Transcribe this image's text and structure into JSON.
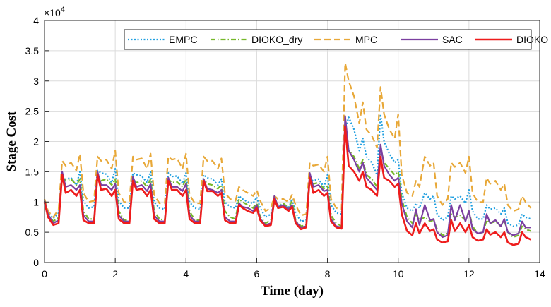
{
  "chart_data": {
    "type": "line",
    "title": "",
    "xlabel": "Time (day)",
    "ylabel": "Stage Cost",
    "y_multiplier_label": "×10",
    "y_multiplier_exp": "4",
    "xlim": [
      0,
      14
    ],
    "ylim": [
      0,
      40000
    ],
    "x_ticks": [
      0,
      2,
      4,
      6,
      8,
      10,
      12,
      14
    ],
    "y_ticks": [
      0,
      5000,
      10000,
      15000,
      20000,
      25000,
      30000,
      35000,
      40000
    ],
    "x_tick_labels": [
      "0",
      "2",
      "4",
      "6",
      "8",
      "10",
      "12",
      "14"
    ],
    "y_tick_labels": [
      "0",
      "0.5",
      "1",
      "1.5",
      "2",
      "2.5",
      "3",
      "3.5",
      "4"
    ],
    "grid": true,
    "legend_position": "top-right",
    "x": [
      0,
      0.1,
      0.25,
      0.4,
      0.5,
      0.6,
      0.75,
      0.9,
      1.0,
      1.1,
      1.25,
      1.4,
      1.5,
      1.6,
      1.75,
      1.9,
      2.0,
      2.1,
      2.25,
      2.4,
      2.5,
      2.6,
      2.75,
      2.9,
      3.0,
      3.1,
      3.25,
      3.4,
      3.5,
      3.6,
      3.75,
      3.9,
      4.0,
      4.1,
      4.25,
      4.4,
      4.5,
      4.6,
      4.75,
      4.9,
      5.0,
      5.1,
      5.25,
      5.4,
      5.5,
      5.6,
      5.75,
      5.9,
      6.0,
      6.1,
      6.25,
      6.4,
      6.5,
      6.6,
      6.75,
      6.9,
      7.0,
      7.1,
      7.25,
      7.4,
      7.5,
      7.6,
      7.75,
      7.9,
      8.0,
      8.1,
      8.25,
      8.4,
      8.5,
      8.6,
      8.75,
      8.9,
      9.0,
      9.1,
      9.25,
      9.4,
      9.5,
      9.6,
      9.75,
      9.9,
      10.0,
      10.1,
      10.25,
      10.4,
      10.5,
      10.6,
      10.75,
      10.9,
      11.0,
      11.1,
      11.25,
      11.4,
      11.5,
      11.6,
      11.75,
      11.9,
      12.0,
      12.1,
      12.25,
      12.4,
      12.5,
      12.6,
      12.75,
      12.9,
      13.0,
      13.1,
      13.25,
      13.4,
      13.5,
      13.6,
      13.75
    ],
    "series": [
      {
        "name": "EMPC",
        "color": "#1f9fe0",
        "dash": "2,2.5",
        "width": 2.2,
        "values": [
          10000,
          8200,
          7300,
          8200,
          14200,
          13800,
          14000,
          12800,
          15000,
          10200,
          9000,
          9200,
          15200,
          14800,
          14600,
          13200,
          15500,
          10200,
          9000,
          9000,
          14800,
          14500,
          14300,
          13200,
          15000,
          10000,
          9000,
          8800,
          14800,
          14200,
          14300,
          13000,
          14800,
          10000,
          9000,
          8800,
          14500,
          14000,
          13800,
          12800,
          13800,
          10000,
          9200,
          9000,
          11000,
          10500,
          10000,
          9800,
          10800,
          9000,
          7500,
          8000,
          10000,
          9500,
          9500,
          9000,
          10500,
          8200,
          6800,
          7000,
          13800,
          13500,
          13800,
          12500,
          14500,
          9500,
          8200,
          8000,
          22000,
          24000,
          22000,
          18500,
          20500,
          17500,
          16500,
          14500,
          24500,
          20000,
          18000,
          16500,
          17000,
          11500,
          9000,
          8500,
          9800,
          9000,
          11500,
          10500,
          11000,
          8000,
          7000,
          7500,
          11000,
          10500,
          11000,
          9800,
          12000,
          8500,
          7200,
          7200,
          9500,
          8800,
          9000,
          8000,
          9000,
          6500,
          6000,
          6200,
          8000,
          7500,
          7200
        ]
      },
      {
        "name": "DIOKO_dry",
        "color": "#76b82a",
        "dash": "7,3,1.5,3",
        "width": 2.2,
        "values": [
          10200,
          8000,
          6800,
          7500,
          14200,
          13500,
          13800,
          12800,
          13800,
          8500,
          7200,
          7200,
          14500,
          13500,
          13800,
          12800,
          13800,
          8500,
          7000,
          7000,
          13800,
          13200,
          13500,
          12500,
          13800,
          8500,
          7200,
          7000,
          13800,
          13200,
          13300,
          12500,
          13800,
          8500,
          7000,
          7000,
          13800,
          13000,
          12800,
          12200,
          12800,
          8500,
          7500,
          7200,
          10500,
          10000,
          9500,
          9000,
          10000,
          7500,
          6500,
          7000,
          10500,
          9500,
          9800,
          9000,
          10200,
          7000,
          6000,
          6200,
          14000,
          13000,
          13200,
          12200,
          12800,
          7800,
          6500,
          6000,
          21500,
          18500,
          17500,
          15500,
          17000,
          14500,
          13800,
          12500,
          19000,
          16500,
          15500,
          14500,
          15000,
          10500,
          7500,
          6500,
          8000,
          7000,
          7500,
          6800,
          7000,
          5500,
          4500,
          4800,
          8000,
          7500,
          7800,
          7000,
          8500,
          6000,
          4800,
          5000,
          7000,
          6500,
          6800,
          6000,
          7000,
          5000,
          4200,
          4500,
          6000,
          5500,
          5200
        ]
      },
      {
        "name": "MPC",
        "color": "#e8a838",
        "dash": "9,5",
        "width": 2.2,
        "values": [
          10500,
          8500,
          7500,
          8800,
          16800,
          16000,
          16500,
          15200,
          18000,
          11500,
          10000,
          10200,
          17500,
          16800,
          17000,
          15500,
          18500,
          11500,
          10000,
          10000,
          17500,
          17000,
          17200,
          15500,
          18000,
          11200,
          9800,
          9800,
          17500,
          17000,
          17200,
          15500,
          18000,
          11200,
          9800,
          9800,
          17500,
          16800,
          16800,
          15500,
          17200,
          11500,
          10500,
          10200,
          12500,
          12000,
          11500,
          11000,
          12000,
          10200,
          8500,
          9000,
          11000,
          10500,
          10500,
          10000,
          11200,
          9500,
          7800,
          8000,
          16500,
          16000,
          16200,
          15000,
          17500,
          10500,
          9000,
          8800,
          33000,
          30000,
          27500,
          23000,
          26500,
          22000,
          21000,
          19000,
          29000,
          24500,
          22000,
          20500,
          24500,
          14500,
          11500,
          11000,
          13500,
          12500,
          17500,
          16000,
          16500,
          11000,
          9500,
          10500,
          16500,
          15800,
          16500,
          14800,
          17500,
          11500,
          10000,
          10000,
          14000,
          13000,
          13500,
          12000,
          13000,
          9500,
          8500,
          8800,
          11000,
          10000,
          9000
        ]
      },
      {
        "name": "SAC",
        "color": "#7b3fa0",
        "dash": "",
        "width": 2.2,
        "values": [
          10200,
          8000,
          6500,
          7000,
          15000,
          12500,
          12800,
          12000,
          12800,
          7800,
          6800,
          6800,
          15000,
          12800,
          12800,
          12000,
          13000,
          7800,
          6800,
          6800,
          14200,
          12500,
          12800,
          11800,
          13000,
          7800,
          6800,
          6800,
          14000,
          12500,
          12500,
          11800,
          13000,
          7800,
          6800,
          6800,
          13800,
          12200,
          12000,
          11500,
          12000,
          7500,
          6800,
          6800,
          9800,
          9200,
          9000,
          8500,
          9500,
          7200,
          6200,
          6500,
          11000,
          9200,
          9500,
          8800,
          9500,
          6800,
          5800,
          6000,
          14800,
          12500,
          12800,
          11800,
          12000,
          7200,
          6000,
          5800,
          24200,
          18500,
          17000,
          15000,
          16500,
          14000,
          13000,
          12000,
          19500,
          16000,
          14500,
          13500,
          14000,
          9800,
          6800,
          5800,
          8800,
          6200,
          9500,
          7000,
          7200,
          5000,
          4200,
          4500,
          9500,
          7000,
          9500,
          6800,
          8500,
          5500,
          4800,
          5000,
          8000,
          6500,
          7000,
          6000,
          7200,
          5000,
          4500,
          4800,
          6800,
          5800,
          5800
        ]
      },
      {
        "name": "DIOKO",
        "color": "#ee1c1c",
        "dash": "",
        "width": 2.6,
        "values": [
          10000,
          7500,
          6200,
          6500,
          14500,
          11500,
          12000,
          11000,
          12000,
          7000,
          6500,
          6500,
          14500,
          12000,
          12200,
          11000,
          12000,
          7200,
          6500,
          6500,
          13500,
          12000,
          12200,
          11000,
          12000,
          7200,
          6500,
          6500,
          13500,
          12000,
          12000,
          11000,
          12000,
          7200,
          6500,
          6500,
          13500,
          11800,
          11800,
          11000,
          11500,
          7000,
          6500,
          6500,
          9500,
          9000,
          8500,
          8200,
          9000,
          7000,
          6000,
          6200,
          10500,
          9000,
          9200,
          8500,
          9200,
          6500,
          5500,
          5800,
          14000,
          11500,
          12000,
          11000,
          11500,
          6800,
          5800,
          5600,
          22500,
          16000,
          15000,
          13500,
          15000,
          12500,
          12000,
          11000,
          17500,
          14000,
          13500,
          12500,
          13000,
          8000,
          5200,
          4500,
          6500,
          4800,
          6500,
          5200,
          5500,
          3800,
          3300,
          3500,
          7000,
          5200,
          6500,
          5000,
          6200,
          4200,
          3600,
          3800,
          5500,
          4600,
          5000,
          4200,
          5000,
          3300,
          2900,
          3100,
          5000,
          4200,
          3800
        ]
      }
    ]
  }
}
